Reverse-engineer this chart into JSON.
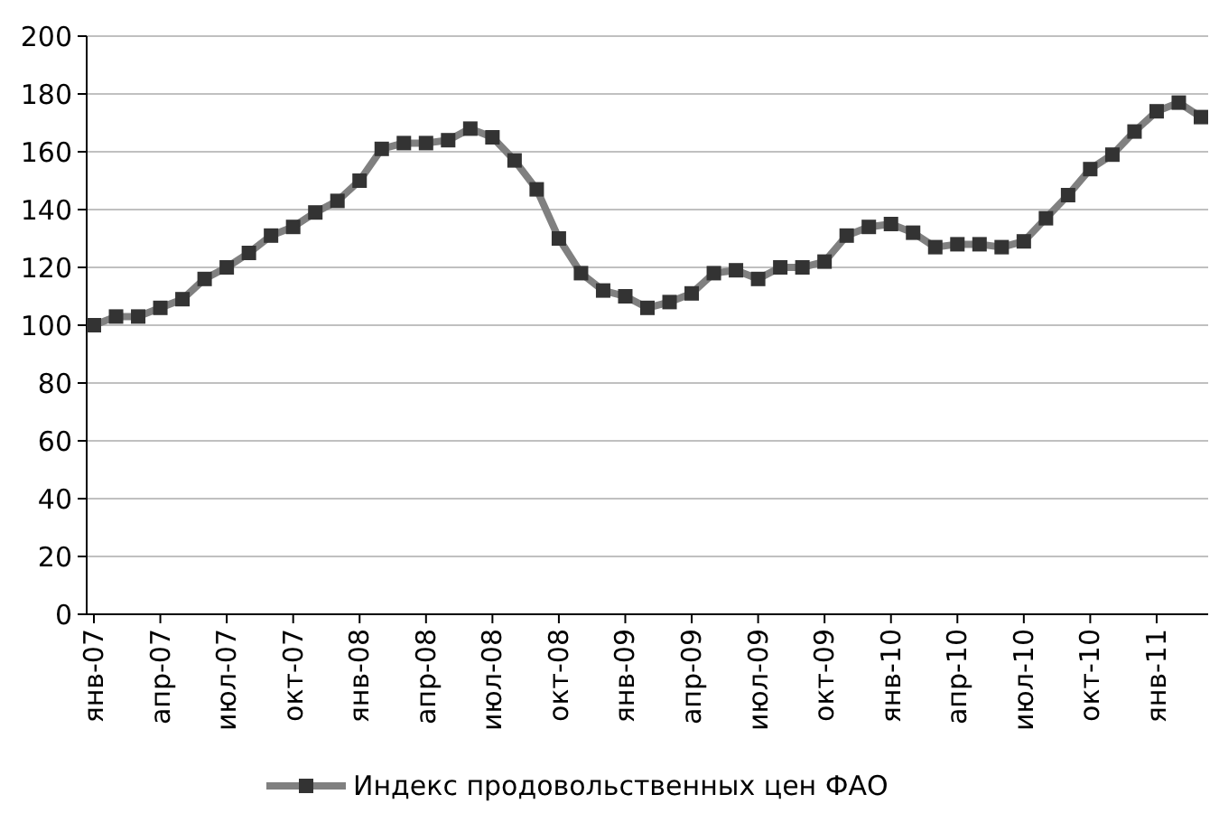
{
  "chart_data": {
    "type": "line",
    "categories": [
      "янв-07",
      null,
      null,
      "апр-07",
      null,
      null,
      "июл-07",
      null,
      null,
      "окт-07",
      null,
      null,
      "янв-08",
      null,
      null,
      "апр-08",
      null,
      null,
      "июл-08",
      null,
      null,
      "окт-08",
      null,
      null,
      "янв-09",
      null,
      null,
      "апр-09",
      null,
      null,
      "июл-09",
      null,
      null,
      "окт-09",
      null,
      null,
      "янв-10",
      null,
      null,
      "апр-10",
      null,
      null,
      "июл-10",
      null,
      null,
      "окт-10",
      null,
      null,
      "янв-11",
      null,
      null
    ],
    "series": [
      {
        "name": "Индекс продовольственных цен ФАО",
        "color": "#808080",
        "values": [
          100,
          103,
          103,
          106,
          109,
          116,
          120,
          125,
          131,
          134,
          139,
          143,
          150,
          161,
          163,
          163,
          164,
          168,
          165,
          157,
          147,
          130,
          118,
          112,
          110,
          106,
          108,
          111,
          118,
          119,
          116,
          120,
          120,
          122,
          131,
          134,
          135,
          132,
          127,
          128,
          128,
          127,
          129,
          137,
          145,
          154,
          159,
          167,
          174,
          177,
          172
        ]
      }
    ],
    "ylim": [
      0,
      200
    ],
    "yticks": [
      0,
      20,
      40,
      60,
      80,
      100,
      120,
      140,
      160,
      180,
      200
    ],
    "grid": "y",
    "legend": "bottom",
    "marker": "square",
    "line_style": "solid"
  }
}
